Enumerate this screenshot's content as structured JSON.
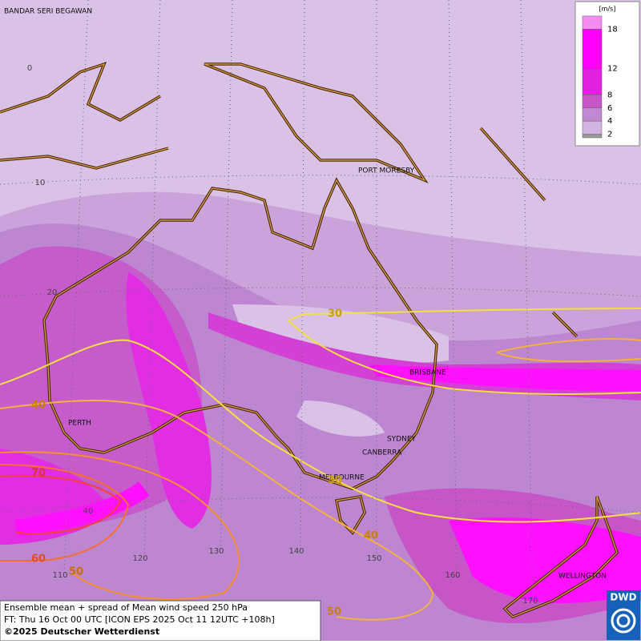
{
  "map": {
    "places": [
      "BANDAR SERI BEGAWAN",
      "PORT MORESBY",
      "BRISBANE",
      "SYDNEY",
      "CANBERRA",
      "MELBOURNE",
      "PERTH",
      "WELLINGTON"
    ],
    "grid_labels": [
      "0",
      "10",
      "20",
      "40",
      "110",
      "120",
      "130",
      "140",
      "150",
      "160",
      "170"
    ],
    "contour_labels": [
      "30",
      "30",
      "40",
      "40",
      "70",
      "60",
      "50",
      "50"
    ]
  },
  "legend": {
    "unit": "[m/s]",
    "over_color": "#f58cf0",
    "levels": [
      {
        "value": 18,
        "color": "#ff00ff"
      },
      {
        "value": 12,
        "color": "#e21fe0"
      },
      {
        "value": 8,
        "color": "#c655c8"
      },
      {
        "value": 6,
        "color": "#bf88d0"
      },
      {
        "value": 4,
        "color": "#d2b2e0"
      },
      {
        "value": 2,
        "color": "#9a9a9a"
      }
    ]
  },
  "caption": {
    "lines": [
      "Ensemble mean + spread of Mean wind speed 250 hPa",
      "FT: Thu 16 Oct 00 UTC [ICON EPS 2025 Oct 11 12UTC +108h]",
      "©2025 Deutscher Wetterdienst"
    ]
  },
  "logo": {
    "text": "DWD"
  }
}
